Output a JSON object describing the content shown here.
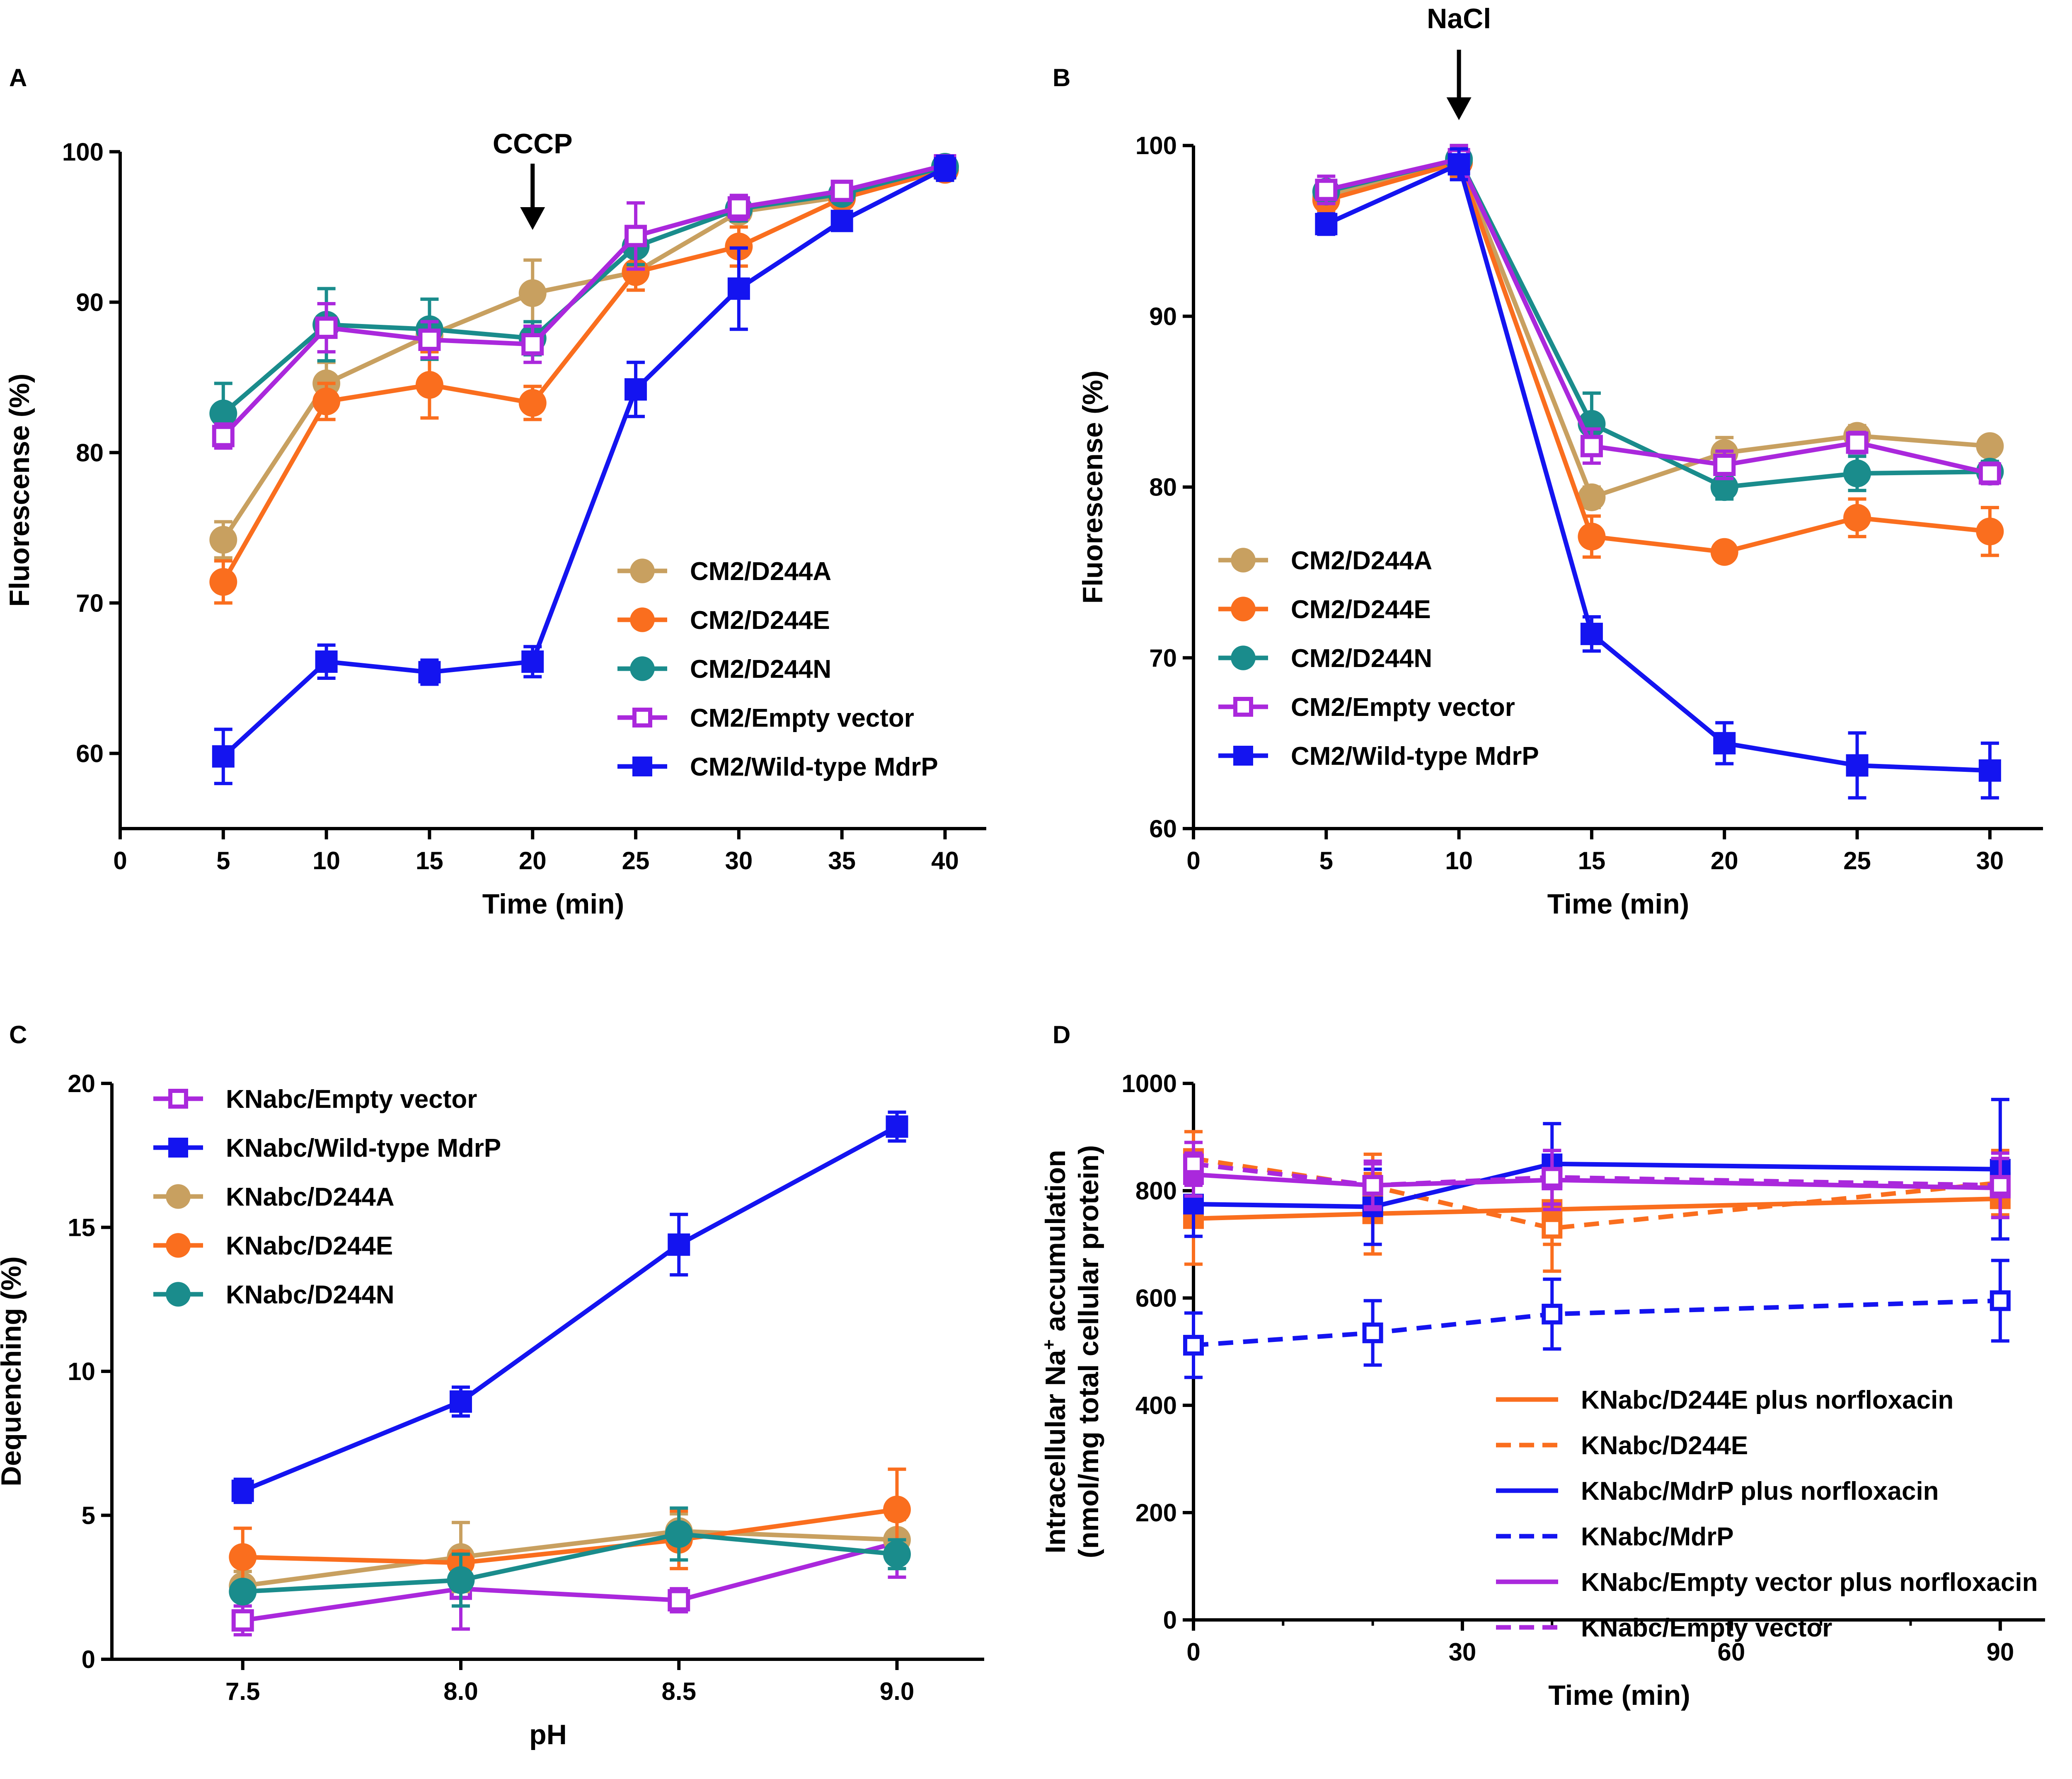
{
  "figure": {
    "description_free": true
  },
  "colors": {
    "D244A": "#c8a060",
    "D244E": "#fa6e1e",
    "D244N": "#1a8c8c",
    "empty": "#aa28dc",
    "wild": "#1414f0"
  },
  "chart_data": [
    {
      "panel": "A",
      "type": "line",
      "xlabel": "Time (min)",
      "ylabel": "Fluorescense (%)",
      "xlim": [
        0,
        42
      ],
      "ylim": [
        55,
        101
      ],
      "xticks": [
        0,
        5,
        10,
        15,
        20,
        25,
        30,
        35,
        40
      ],
      "yticks": [
        60,
        70,
        80,
        90,
        100
      ],
      "annotation": {
        "text": "CCCP",
        "x": 20,
        "y": 95
      },
      "legend_position": "lower-right",
      "series": [
        {
          "name": "CM2/D244A",
          "color": "#c8a060",
          "marker": "circle",
          "dash": false,
          "x": [
            5,
            10,
            15,
            20,
            25,
            30,
            35,
            40
          ],
          "y": [
            74.2,
            84.6,
            87.8,
            90.6,
            92,
            96,
            97,
            99
          ],
          "err": [
            1.2,
            1.4,
            1.0,
            2.2,
            1.2,
            0.6,
            0.6,
            0.6
          ]
        },
        {
          "name": "CM2/D244E",
          "color": "#fa6e1e",
          "marker": "circle",
          "dash": false,
          "x": [
            5,
            10,
            15,
            20,
            25,
            30,
            35,
            40
          ],
          "y": [
            71.4,
            83.4,
            84.5,
            83.3,
            92,
            93.7,
            96.9,
            98.8
          ],
          "err": [
            1.4,
            1.2,
            2.2,
            1.1,
            1.2,
            1.3,
            0.5,
            0.6
          ]
        },
        {
          "name": "CM2/D244N",
          "color": "#1a8c8c",
          "marker": "circle",
          "dash": false,
          "x": [
            5,
            10,
            15,
            20,
            25,
            30,
            35,
            40
          ],
          "y": [
            82.6,
            88.5,
            88.2,
            87.6,
            93.7,
            96.2,
            97.2,
            99
          ],
          "err": [
            2.0,
            2.4,
            2.0,
            1.1,
            1.2,
            0.8,
            0.6,
            0.6
          ]
        },
        {
          "name": "CM2/Empty vector",
          "color": "#aa28dc",
          "marker": "square-open",
          "dash": false,
          "x": [
            5,
            10,
            15,
            20,
            25,
            30,
            35,
            40
          ],
          "y": [
            81.1,
            88.3,
            87.5,
            87.2,
            94.4,
            96.3,
            97.4,
            99.1
          ],
          "err": [
            0.8,
            1.6,
            1.2,
            1.2,
            2.2,
            0.8,
            0.6,
            0.6
          ]
        },
        {
          "name": "CM2/Wild-type MdrP",
          "color": "#1414f0",
          "marker": "square",
          "dash": false,
          "x": [
            5,
            10,
            15,
            20,
            25,
            30,
            35,
            40
          ],
          "y": [
            59.8,
            66.1,
            65.4,
            66.1,
            84.2,
            90.9,
            95.4,
            98.9
          ],
          "err": [
            1.8,
            1.1,
            0.8,
            1.0,
            1.8,
            2.7,
            0.6,
            0.8
          ]
        }
      ]
    },
    {
      "panel": "B",
      "type": "line",
      "xlabel": "Time (min)",
      "ylabel": "Fluorescense (%)",
      "xlim": [
        0,
        32
      ],
      "ylim": [
        60,
        101
      ],
      "xticks": [
        0,
        5,
        10,
        15,
        20,
        25,
        30
      ],
      "yticks": [
        60,
        70,
        80,
        90,
        100
      ],
      "annotation": {
        "text": "NaCl",
        "x": 10,
        "y": 103
      },
      "legend_position": "lower-left",
      "series": [
        {
          "name": "CM2/D244A",
          "color": "#c8a060",
          "marker": "circle",
          "dash": false,
          "x": [
            5,
            10,
            15,
            20,
            25,
            30
          ],
          "y": [
            97,
            99.1,
            79.4,
            82,
            83,
            82.4
          ],
          "err": [
            0.6,
            0.8,
            0.6,
            0.9,
            0.6,
            0.4
          ]
        },
        {
          "name": "CM2/D244E",
          "color": "#fa6e1e",
          "marker": "circle",
          "dash": false,
          "x": [
            5,
            10,
            15,
            20,
            25,
            30
          ],
          "y": [
            96.8,
            99,
            77.1,
            76.2,
            78.2,
            77.4
          ],
          "err": [
            0.6,
            0.8,
            1.2,
            0.4,
            1.1,
            1.4
          ]
        },
        {
          "name": "CM2/D244N",
          "color": "#1a8c8c",
          "marker": "circle",
          "dash": false,
          "x": [
            5,
            10,
            15,
            20,
            25,
            30
          ],
          "y": [
            97.3,
            99.2,
            83.7,
            80,
            80.8,
            80.9
          ],
          "err": [
            0.6,
            0.8,
            1.8,
            0.7,
            1.0,
            0.6
          ]
        },
        {
          "name": "CM2/Empty vector",
          "color": "#aa28dc",
          "marker": "square-open",
          "dash": false,
          "x": [
            5,
            10,
            15,
            20,
            25,
            30
          ],
          "y": [
            97.4,
            99.2,
            82.4,
            81.3,
            82.6,
            80.8
          ],
          "err": [
            0.8,
            0.8,
            1.0,
            0.8,
            0.6,
            0.6
          ]
        },
        {
          "name": "CM2/Wild-type MdrP",
          "color": "#1414f0",
          "marker": "square",
          "dash": false,
          "x": [
            5,
            10,
            15,
            20,
            25,
            30
          ],
          "y": [
            95.4,
            98.9,
            71.4,
            65,
            63.7,
            63.4
          ],
          "err": [
            0.6,
            0.9,
            1.0,
            1.2,
            1.9,
            1.6
          ]
        }
      ]
    },
    {
      "panel": "C",
      "type": "line",
      "xlabel": "pH",
      "ylabel": "Dequenching (%)",
      "xlim": [
        7.2,
        9.2
      ],
      "ylim": [
        0,
        20
      ],
      "xticks": [
        7.5,
        8.0,
        8.5,
        9.0
      ],
      "xticklabels": [
        "7.5",
        "8.0",
        "8.5",
        "9.0"
      ],
      "yticks": [
        0,
        5,
        10,
        15,
        20
      ],
      "legend_position": "top-left",
      "series": [
        {
          "name": "KNabc/Empty vector",
          "color": "#aa28dc",
          "marker": "square-open",
          "dash": false,
          "x": [
            7.5,
            8.0,
            8.5,
            9.0
          ],
          "y": [
            1.35,
            2.45,
            2.05,
            4.05
          ],
          "err": [
            0.5,
            1.4,
            0.4,
            1.2
          ]
        },
        {
          "name": "KNabc/Wild-type MdrP",
          "color": "#1414f0",
          "marker": "square",
          "dash": false,
          "x": [
            7.5,
            8.0,
            8.5,
            9.0
          ],
          "y": [
            5.85,
            8.95,
            14.4,
            18.5
          ],
          "err": [
            0.4,
            0.5,
            1.05,
            0.5
          ]
        },
        {
          "name": "KNabc/D244A",
          "color": "#c8a060",
          "marker": "circle",
          "dash": false,
          "x": [
            7.5,
            8.0,
            8.5,
            9.0
          ],
          "y": [
            2.55,
            3.55,
            4.45,
            4.15
          ],
          "err": [
            0.5,
            1.2,
            0.6,
            0.7
          ]
        },
        {
          "name": "KNabc/D244E",
          "color": "#fa6e1e",
          "marker": "circle",
          "dash": false,
          "x": [
            7.5,
            8.0,
            8.5,
            9.0
          ],
          "y": [
            3.55,
            3.35,
            4.15,
            5.2
          ],
          "err": [
            1.0,
            0.4,
            1.0,
            1.4
          ]
        },
        {
          "name": "KNabc/D244N",
          "color": "#1a8c8c",
          "marker": "circle",
          "dash": false,
          "x": [
            7.5,
            8.0,
            8.5,
            9.0
          ],
          "y": [
            2.35,
            2.75,
            4.35,
            3.65
          ],
          "err": [
            0.3,
            0.9,
            0.9,
            0.5
          ]
        }
      ]
    },
    {
      "panel": "D",
      "type": "line",
      "xlabel": "Time (min)",
      "ylabel_line1": "Intracellular Na",
      "ylabel_sup": "+",
      "ylabel_rest": " accumulation",
      "ylabel_line2": "(nmol/mg total cellular protein)",
      "xlim": [
        0,
        95
      ],
      "ylim": [
        0,
        1000
      ],
      "xticks": [
        0,
        30,
        60,
        90
      ],
      "yticks": [
        0,
        200,
        400,
        600,
        800,
        1000
      ],
      "legend_position": "lower-right",
      "series": [
        {
          "name": "KNabc/D244E plus norfloxacin",
          "color": "#fa6e1e",
          "marker": "square",
          "dash": false,
          "x": [
            0,
            20,
            40,
            90
          ],
          "y": [
            748,
            757,
            765,
            785
          ],
          "err": [
            85,
            75,
            65,
            75
          ]
        },
        {
          "name": "KNabc/D244E",
          "color": "#fa6e1e",
          "marker": "square-open",
          "dash": true,
          "x": [
            0,
            20,
            40,
            90
          ],
          "y": [
            860,
            808,
            730,
            815
          ],
          "err": [
            50,
            60,
            80,
            60
          ]
        },
        {
          "name": "KNabc/MdrP plus norfloxacin",
          "color": "#1414f0",
          "marker": "square",
          "dash": false,
          "x": [
            0,
            20,
            40,
            90
          ],
          "y": [
            775,
            770,
            850,
            840
          ],
          "err": [
            60,
            70,
            75,
            130
          ]
        },
        {
          "name": "KNabc/MdrP",
          "color": "#1414f0",
          "marker": "square-open",
          "dash": true,
          "x": [
            0,
            20,
            40,
            90
          ],
          "y": [
            512,
            535,
            570,
            595
          ],
          "err": [
            60,
            60,
            65,
            75
          ]
        },
        {
          "name": "KNabc/Empty vector plus norfloxacin",
          "color": "#aa28dc",
          "marker": "square",
          "dash": false,
          "x": [
            0,
            20,
            40,
            90
          ],
          "y": [
            830,
            810,
            820,
            805
          ],
          "err": [
            40,
            45,
            55,
            55
          ]
        },
        {
          "name": "KNabc/Empty vector",
          "color": "#aa28dc",
          "marker": "square-open",
          "dash": true,
          "x": [
            0,
            20,
            40,
            90
          ],
          "y": [
            850,
            810,
            825,
            810
          ],
          "err": [
            40,
            40,
            50,
            60
          ]
        }
      ]
    }
  ]
}
